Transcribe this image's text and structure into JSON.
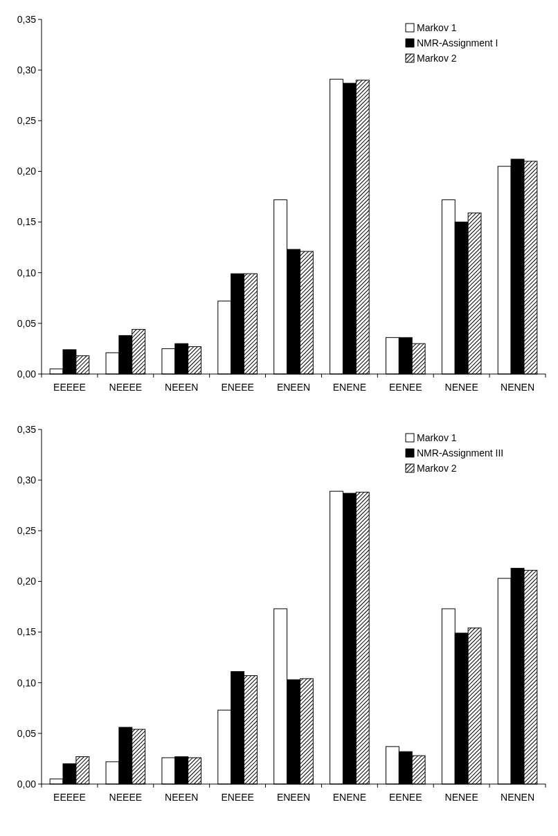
{
  "chart_data": [
    {
      "type": "bar",
      "categories": [
        "EEEEE",
        "NEEEE",
        "NEEEN",
        "ENEEE",
        "ENEEN",
        "ENENE",
        "EENEE",
        "NENEE",
        "NENEN"
      ],
      "series": [
        {
          "name": "Markov 1",
          "color": "#ffffff",
          "values": [
            0.005,
            0.021,
            0.025,
            0.072,
            0.172,
            0.291,
            0.036,
            0.172,
            0.205
          ]
        },
        {
          "name": "NMR-Assignment I",
          "color": "#000000",
          "values": [
            0.024,
            0.038,
            0.03,
            0.099,
            0.123,
            0.287,
            0.036,
            0.15,
            0.212
          ]
        },
        {
          "name": "Markov 2",
          "color": "#000000",
          "values": [
            0.018,
            0.044,
            0.027,
            0.099,
            0.121,
            0.29,
            0.03,
            0.159,
            0.21
          ]
        }
      ],
      "ylim": [
        0,
        0.35
      ],
      "yticks": [
        {
          "value": 0,
          "label": "0,00"
        },
        {
          "value": 0.05,
          "label": "0,05"
        },
        {
          "value": 0.1,
          "label": "0,10"
        },
        {
          "value": 0.15,
          "label": "0,15"
        },
        {
          "value": 0.2,
          "label": "0,20"
        },
        {
          "value": 0.25,
          "label": "0,25"
        },
        {
          "value": 0.3,
          "label": "0,30"
        },
        {
          "value": 0.35,
          "label": "0,35"
        }
      ],
      "grid": false,
      "legend": "top right"
    },
    {
      "type": "bar",
      "categories": [
        "EEEEE",
        "NEEEE",
        "NEEEN",
        "ENEEE",
        "ENEEN",
        "ENENE",
        "EENEE",
        "NENEE",
        "NENEN"
      ],
      "series": [
        {
          "name": "Markov 1",
          "color": "#ffffff",
          "values": [
            0.005,
            0.022,
            0.026,
            0.073,
            0.173,
            0.289,
            0.037,
            0.173,
            0.203
          ]
        },
        {
          "name": "NMR-Assignment III",
          "color": "#000000",
          "values": [
            0.02,
            0.056,
            0.027,
            0.111,
            0.103,
            0.287,
            0.032,
            0.149,
            0.213
          ]
        },
        {
          "name": "Markov 2",
          "color": "#000000",
          "values": [
            0.027,
            0.054,
            0.026,
            0.107,
            0.104,
            0.288,
            0.028,
            0.154,
            0.211
          ]
        }
      ],
      "ylim": [
        0,
        0.35
      ],
      "yticks": [
        {
          "value": 0,
          "label": "0,00"
        },
        {
          "value": 0.05,
          "label": "0,05"
        },
        {
          "value": 0.1,
          "label": "0,10"
        },
        {
          "value": 0.15,
          "label": "0,15"
        },
        {
          "value": 0.2,
          "label": "0,20"
        },
        {
          "value": 0.25,
          "label": "0,25"
        },
        {
          "value": 0.3,
          "label": "0,30"
        },
        {
          "value": 0.35,
          "label": "0,35"
        }
      ],
      "grid": false,
      "legend": "top right"
    }
  ]
}
